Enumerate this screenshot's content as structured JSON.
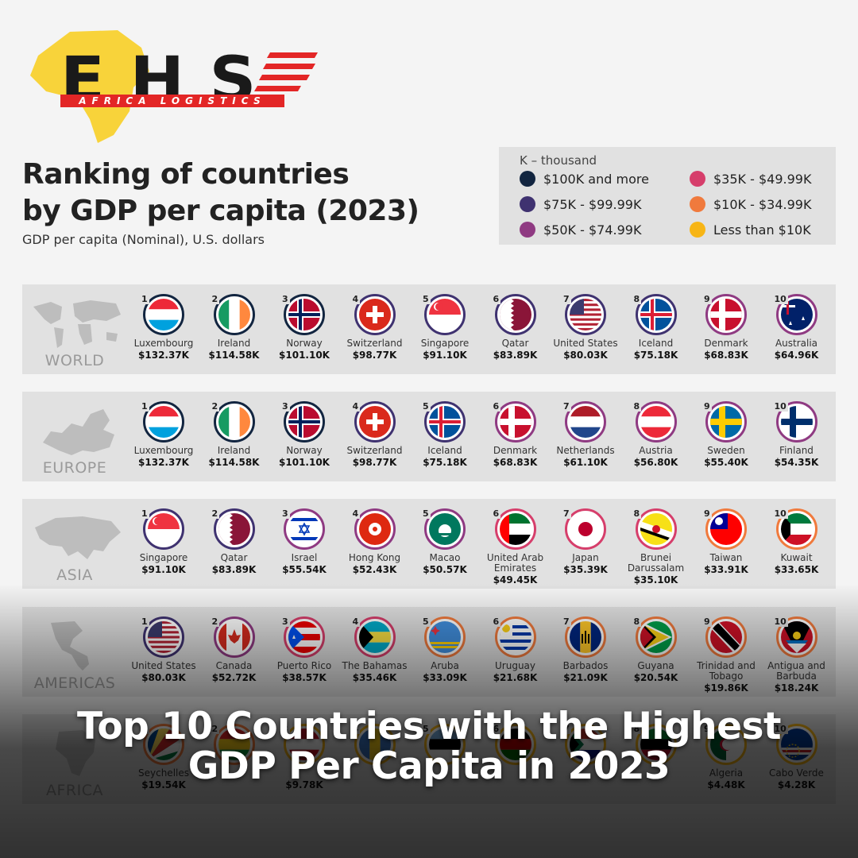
{
  "logo": {
    "brand": "EHS",
    "tagline": "AFRICA LOGISTICS"
  },
  "title_line1": "Ranking of countries",
  "title_line2": "by GDP per capita (2023)",
  "subtitle": "GDP per capita (Nominal), U.S. dollars",
  "legend": {
    "note": "K – thousand",
    "items": [
      {
        "label": "$100K and more",
        "color": "#122540"
      },
      {
        "label": "$35K - $49.99K",
        "color": "#d63e6b"
      },
      {
        "label": "$75K - $99.99K",
        "color": "#3f3270"
      },
      {
        "label": "$10K - $34.99K",
        "color": "#f07a3d"
      },
      {
        "label": "$50K - $74.99K",
        "color": "#8f3a82"
      },
      {
        "label": "Less than $10K",
        "color": "#f7b516"
      }
    ]
  },
  "regions": [
    {
      "name": "WORLD",
      "countries": [
        {
          "rank": "1",
          "name": "Luxembourg",
          "value": "$132.37K",
          "ring": "#122540",
          "flag": "lux"
        },
        {
          "rank": "2",
          "name": "Ireland",
          "value": "$114.58K",
          "ring": "#122540",
          "flag": "irl"
        },
        {
          "rank": "3",
          "name": "Norway",
          "value": "$101.10K",
          "ring": "#122540",
          "flag": "nor"
        },
        {
          "rank": "4",
          "name": "Switzerland",
          "value": "$98.77K",
          "ring": "#3f3270",
          "flag": "che"
        },
        {
          "rank": "5",
          "name": "Singapore",
          "value": "$91.10K",
          "ring": "#3f3270",
          "flag": "sgp"
        },
        {
          "rank": "6",
          "name": "Qatar",
          "value": "$83.89K",
          "ring": "#3f3270",
          "flag": "qat"
        },
        {
          "rank": "7",
          "name": "United States",
          "value": "$80.03K",
          "ring": "#3f3270",
          "flag": "usa"
        },
        {
          "rank": "8",
          "name": "Iceland",
          "value": "$75.18K",
          "ring": "#3f3270",
          "flag": "isl"
        },
        {
          "rank": "9",
          "name": "Denmark",
          "value": "$68.83K",
          "ring": "#8f3a82",
          "flag": "dnk"
        },
        {
          "rank": "10",
          "name": "Australia",
          "value": "$64.96K",
          "ring": "#8f3a82",
          "flag": "aus"
        }
      ]
    },
    {
      "name": "EUROPE",
      "countries": [
        {
          "rank": "1",
          "name": "Luxembourg",
          "value": "$132.37K",
          "ring": "#122540",
          "flag": "lux"
        },
        {
          "rank": "2",
          "name": "Ireland",
          "value": "$114.58K",
          "ring": "#122540",
          "flag": "irl"
        },
        {
          "rank": "3",
          "name": "Norway",
          "value": "$101.10K",
          "ring": "#122540",
          "flag": "nor"
        },
        {
          "rank": "4",
          "name": "Switzerland",
          "value": "$98.77K",
          "ring": "#3f3270",
          "flag": "che"
        },
        {
          "rank": "5",
          "name": "Iceland",
          "value": "$75.18K",
          "ring": "#3f3270",
          "flag": "isl"
        },
        {
          "rank": "6",
          "name": "Denmark",
          "value": "$68.83K",
          "ring": "#8f3a82",
          "flag": "dnk"
        },
        {
          "rank": "7",
          "name": "Netherlands",
          "value": "$61.10K",
          "ring": "#8f3a82",
          "flag": "nld"
        },
        {
          "rank": "8",
          "name": "Austria",
          "value": "$56.80K",
          "ring": "#8f3a82",
          "flag": "aut"
        },
        {
          "rank": "9",
          "name": "Sweden",
          "value": "$55.40K",
          "ring": "#8f3a82",
          "flag": "swe"
        },
        {
          "rank": "10",
          "name": "Finland",
          "value": "$54.35K",
          "ring": "#8f3a82",
          "flag": "fin"
        }
      ]
    },
    {
      "name": "ASIA",
      "countries": [
        {
          "rank": "1",
          "name": "Singapore",
          "value": "$91.10K",
          "ring": "#3f3270",
          "flag": "sgp"
        },
        {
          "rank": "2",
          "name": "Qatar",
          "value": "$83.89K",
          "ring": "#3f3270",
          "flag": "qat"
        },
        {
          "rank": "3",
          "name": "Israel",
          "value": "$55.54K",
          "ring": "#8f3a82",
          "flag": "isr"
        },
        {
          "rank": "4",
          "name": "Hong Kong",
          "value": "$52.43K",
          "ring": "#8f3a82",
          "flag": "hkg"
        },
        {
          "rank": "5",
          "name": "Macao",
          "value": "$50.57K",
          "ring": "#8f3a82",
          "flag": "mac"
        },
        {
          "rank": "6",
          "name": "United Arab Emirates",
          "value": "$49.45K",
          "ring": "#d63e6b",
          "flag": "are"
        },
        {
          "rank": "7",
          "name": "Japan",
          "value": "$35.39K",
          "ring": "#d63e6b",
          "flag": "jpn"
        },
        {
          "rank": "8",
          "name": "Brunei Darussalam",
          "value": "$35.10K",
          "ring": "#d63e6b",
          "flag": "brn"
        },
        {
          "rank": "9",
          "name": "Taiwan",
          "value": "$33.91K",
          "ring": "#f07a3d",
          "flag": "twn"
        },
        {
          "rank": "10",
          "name": "Kuwait",
          "value": "$33.65K",
          "ring": "#f07a3d",
          "flag": "kwt"
        }
      ]
    },
    {
      "name": "AMERICAS",
      "countries": [
        {
          "rank": "1",
          "name": "United States",
          "value": "$80.03K",
          "ring": "#3f3270",
          "flag": "usa"
        },
        {
          "rank": "2",
          "name": "Canada",
          "value": "$52.72K",
          "ring": "#8f3a82",
          "flag": "can"
        },
        {
          "rank": "3",
          "name": "Puerto Rico",
          "value": "$38.57K",
          "ring": "#d63e6b",
          "flag": "pri"
        },
        {
          "rank": "4",
          "name": "The Bahamas",
          "value": "$35.46K",
          "ring": "#d63e6b",
          "flag": "bhs"
        },
        {
          "rank": "5",
          "name": "Aruba",
          "value": "$33.09K",
          "ring": "#f07a3d",
          "flag": "abw"
        },
        {
          "rank": "6",
          "name": "Uruguay",
          "value": "$21.68K",
          "ring": "#f07a3d",
          "flag": "ury"
        },
        {
          "rank": "7",
          "name": "Barbados",
          "value": "$21.09K",
          "ring": "#f07a3d",
          "flag": "brb"
        },
        {
          "rank": "8",
          "name": "Guyana",
          "value": "$20.54K",
          "ring": "#f07a3d",
          "flag": "guy"
        },
        {
          "rank": "9",
          "name": "Trinidad and Tobago",
          "value": "$19.86K",
          "ring": "#f07a3d",
          "flag": "tto"
        },
        {
          "rank": "10",
          "name": "Antigua and Barbuda",
          "value": "$18.24K",
          "ring": "#f07a3d",
          "flag": "atg"
        }
      ]
    },
    {
      "name": "AFRICA",
      "countries": [
        {
          "rank": "1",
          "name": "Seychelles",
          "value": "$19.54K",
          "ring": "#f07a3d",
          "flag": "syc"
        },
        {
          "rank": "2",
          "name": "",
          "value": "",
          "ring": "#f07a3d",
          "flag": "generic2"
        },
        {
          "rank": "3",
          "name": "",
          "value": "$9.78K",
          "ring": "#f7b516",
          "flag": "generic3"
        },
        {
          "rank": "4",
          "name": "",
          "value": "",
          "ring": "#f7b516",
          "flag": "generic4"
        },
        {
          "rank": "5",
          "name": "",
          "value": "",
          "ring": "#f7b516",
          "flag": "generic5"
        },
        {
          "rank": "6",
          "name": "",
          "value": "",
          "ring": "#f7b516",
          "flag": "generic6"
        },
        {
          "rank": "7",
          "name": "",
          "value": "",
          "ring": "#f7b516",
          "flag": "zaf"
        },
        {
          "rank": "8",
          "name": "",
          "value": "",
          "ring": "#f7b516",
          "flag": "generic8"
        },
        {
          "rank": "9",
          "name": "Algeria",
          "value": "$4.48K",
          "ring": "#f7b516",
          "flag": "dza"
        },
        {
          "rank": "10",
          "name": "Cabo Verde",
          "value": "$4.28K",
          "ring": "#f7b516",
          "flag": "cpv"
        }
      ]
    }
  ],
  "overlay_title_line1": "Top 10 Countries with the Highest",
  "overlay_title_line2": "GDP Per Capita in 2023"
}
